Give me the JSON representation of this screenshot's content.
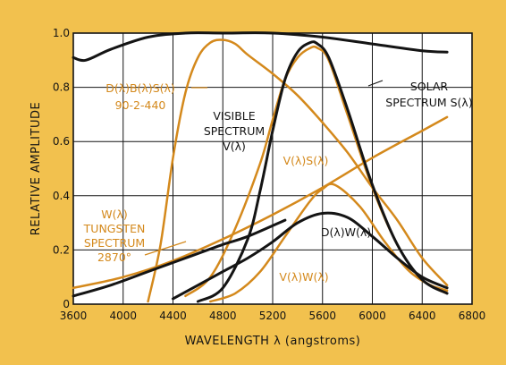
{
  "chart_data": {
    "type": "line",
    "title": "",
    "xlabel": "WAVELENGTH λ (angstroms)",
    "ylabel": "RELATIVE AMPLITUDE",
    "xlim": [
      3600,
      6800
    ],
    "ylim": [
      0,
      1.0
    ],
    "x_ticks": [
      3600,
      4000,
      4400,
      4800,
      5200,
      5600,
      6000,
      6400,
      6800
    ],
    "y_ticks": [
      0,
      0.2,
      0.4,
      0.6,
      0.8,
      1.0
    ],
    "y_tick_labels": [
      "0",
      "0.2",
      "0.4",
      "0.6",
      "0.8",
      "1.0"
    ],
    "grid": true,
    "colors": {
      "background": "#f2c14e",
      "plot": "#ffffff",
      "grid": "#141414",
      "black": "#141414",
      "orange": "#d4891c"
    },
    "series": [
      {
        "key": "solar",
        "color": "#141414",
        "width": 3,
        "x": [
          3600,
          3700,
          3900,
          4200,
          4500,
          4800,
          5200,
          5600,
          6000,
          6400,
          6600
        ],
        "y": [
          0.91,
          0.9,
          0.94,
          0.985,
          1.0,
          1.0,
          1.0,
          0.985,
          0.96,
          0.935,
          0.93
        ]
      },
      {
        "key": "visible",
        "color": "#141414",
        "width": 3,
        "x": [
          4600,
          4800,
          5000,
          5100,
          5200,
          5300,
          5400,
          5500,
          5560,
          5650,
          5800,
          6000,
          6200,
          6400,
          6600
        ],
        "y": [
          0.01,
          0.06,
          0.24,
          0.42,
          0.64,
          0.83,
          0.93,
          0.965,
          0.96,
          0.91,
          0.72,
          0.44,
          0.22,
          0.09,
          0.04
        ]
      },
      {
        "key": "dw",
        "color": "#141414",
        "width": 3,
        "x": [
          4400,
          4600,
          4800,
          5000,
          5200,
          5400,
          5600,
          5800,
          6000,
          6200,
          6400,
          6600
        ],
        "y": [
          0.02,
          0.07,
          0.12,
          0.17,
          0.23,
          0.3,
          0.335,
          0.32,
          0.25,
          0.17,
          0.1,
          0.06
        ]
      },
      {
        "key": "tungsten_black",
        "color": "#141414",
        "width": 3,
        "x": [
          3600,
          3900,
          4200,
          4500,
          4800,
          5000,
          5300
        ],
        "y": [
          0.03,
          0.07,
          0.12,
          0.17,
          0.22,
          0.25,
          0.31
        ]
      },
      {
        "key": "dbs",
        "color": "#d4891c",
        "width": 2.5,
        "x": [
          4200,
          4300,
          4400,
          4500,
          4600,
          4700,
          4800,
          4900,
          5000,
          5200,
          5400,
          5600,
          5800,
          6000,
          6200,
          6400,
          6600
        ],
        "y": [
          0.01,
          0.22,
          0.54,
          0.78,
          0.91,
          0.965,
          0.975,
          0.96,
          0.92,
          0.85,
          0.77,
          0.67,
          0.56,
          0.43,
          0.31,
          0.17,
          0.07
        ]
      },
      {
        "key": "vs",
        "color": "#d4891c",
        "width": 2.5,
        "x": [
          4500,
          4700,
          4900,
          5100,
          5200,
          5300,
          5400,
          5500,
          5560,
          5650,
          5800,
          6000,
          6200,
          6400,
          6600
        ],
        "y": [
          0.03,
          0.1,
          0.28,
          0.52,
          0.68,
          0.83,
          0.91,
          0.945,
          0.945,
          0.9,
          0.7,
          0.43,
          0.22,
          0.09,
          0.05
        ]
      },
      {
        "key": "tungsten",
        "color": "#d4891c",
        "width": 2.5,
        "x": [
          3600,
          4000,
          4400,
          4800,
          5200,
          5600,
          6000,
          6400,
          6600
        ],
        "y": [
          0.06,
          0.1,
          0.16,
          0.24,
          0.33,
          0.43,
          0.54,
          0.64,
          0.69
        ]
      },
      {
        "key": "vw",
        "color": "#d4891c",
        "width": 2.5,
        "x": [
          4700,
          4900,
          5100,
          5300,
          5500,
          5600,
          5700,
          5900,
          6100,
          6300,
          6500,
          6600
        ],
        "y": [
          0.01,
          0.04,
          0.12,
          0.25,
          0.38,
          0.425,
          0.44,
          0.36,
          0.23,
          0.12,
          0.06,
          0.04
        ]
      }
    ],
    "annotations": [
      {
        "key": "dbs_label",
        "color": "orange",
        "lines": [
          "D(λ)B(λ)S(λ)",
          "90-2-440"
        ]
      },
      {
        "key": "visible_label",
        "color": "black",
        "lines": [
          "VISIBLE",
          "SPECTRUM",
          "V(λ)"
        ]
      },
      {
        "key": "solar_label",
        "color": "black",
        "lines": [
          "SOLAR",
          "SPECTRUM  S(λ)"
        ]
      },
      {
        "key": "vs_label",
        "color": "orange",
        "lines": [
          "V(λ)S(λ)"
        ]
      },
      {
        "key": "tungsten_label",
        "color": "orange",
        "lines": [
          "W(λ)",
          "TUNGSTEN",
          "SPECTRUM",
          "2870°"
        ]
      },
      {
        "key": "dw_label",
        "color": "black",
        "lines": [
          "D(λ)W(λ)"
        ]
      },
      {
        "key": "vw_label",
        "color": "orange",
        "lines": [
          "V(λ)W(λ)"
        ]
      }
    ]
  }
}
